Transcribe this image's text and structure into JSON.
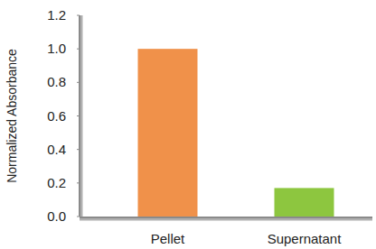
{
  "chart_data": {
    "type": "bar",
    "y_label": "Normalized Absorbance",
    "categories": [
      "Pellet",
      "Supernatant"
    ],
    "values": [
      1.0,
      0.17
    ],
    "colors": [
      "#f0914a",
      "#8dc63f"
    ],
    "ylim": [
      0,
      1.2
    ],
    "yticks": [
      {
        "value": 0,
        "label": "0.0"
      },
      0.2,
      0.4,
      0.6,
      0.8,
      {
        "value": 1,
        "label": "1.0"
      },
      1.2
    ],
    "grid": false
  }
}
